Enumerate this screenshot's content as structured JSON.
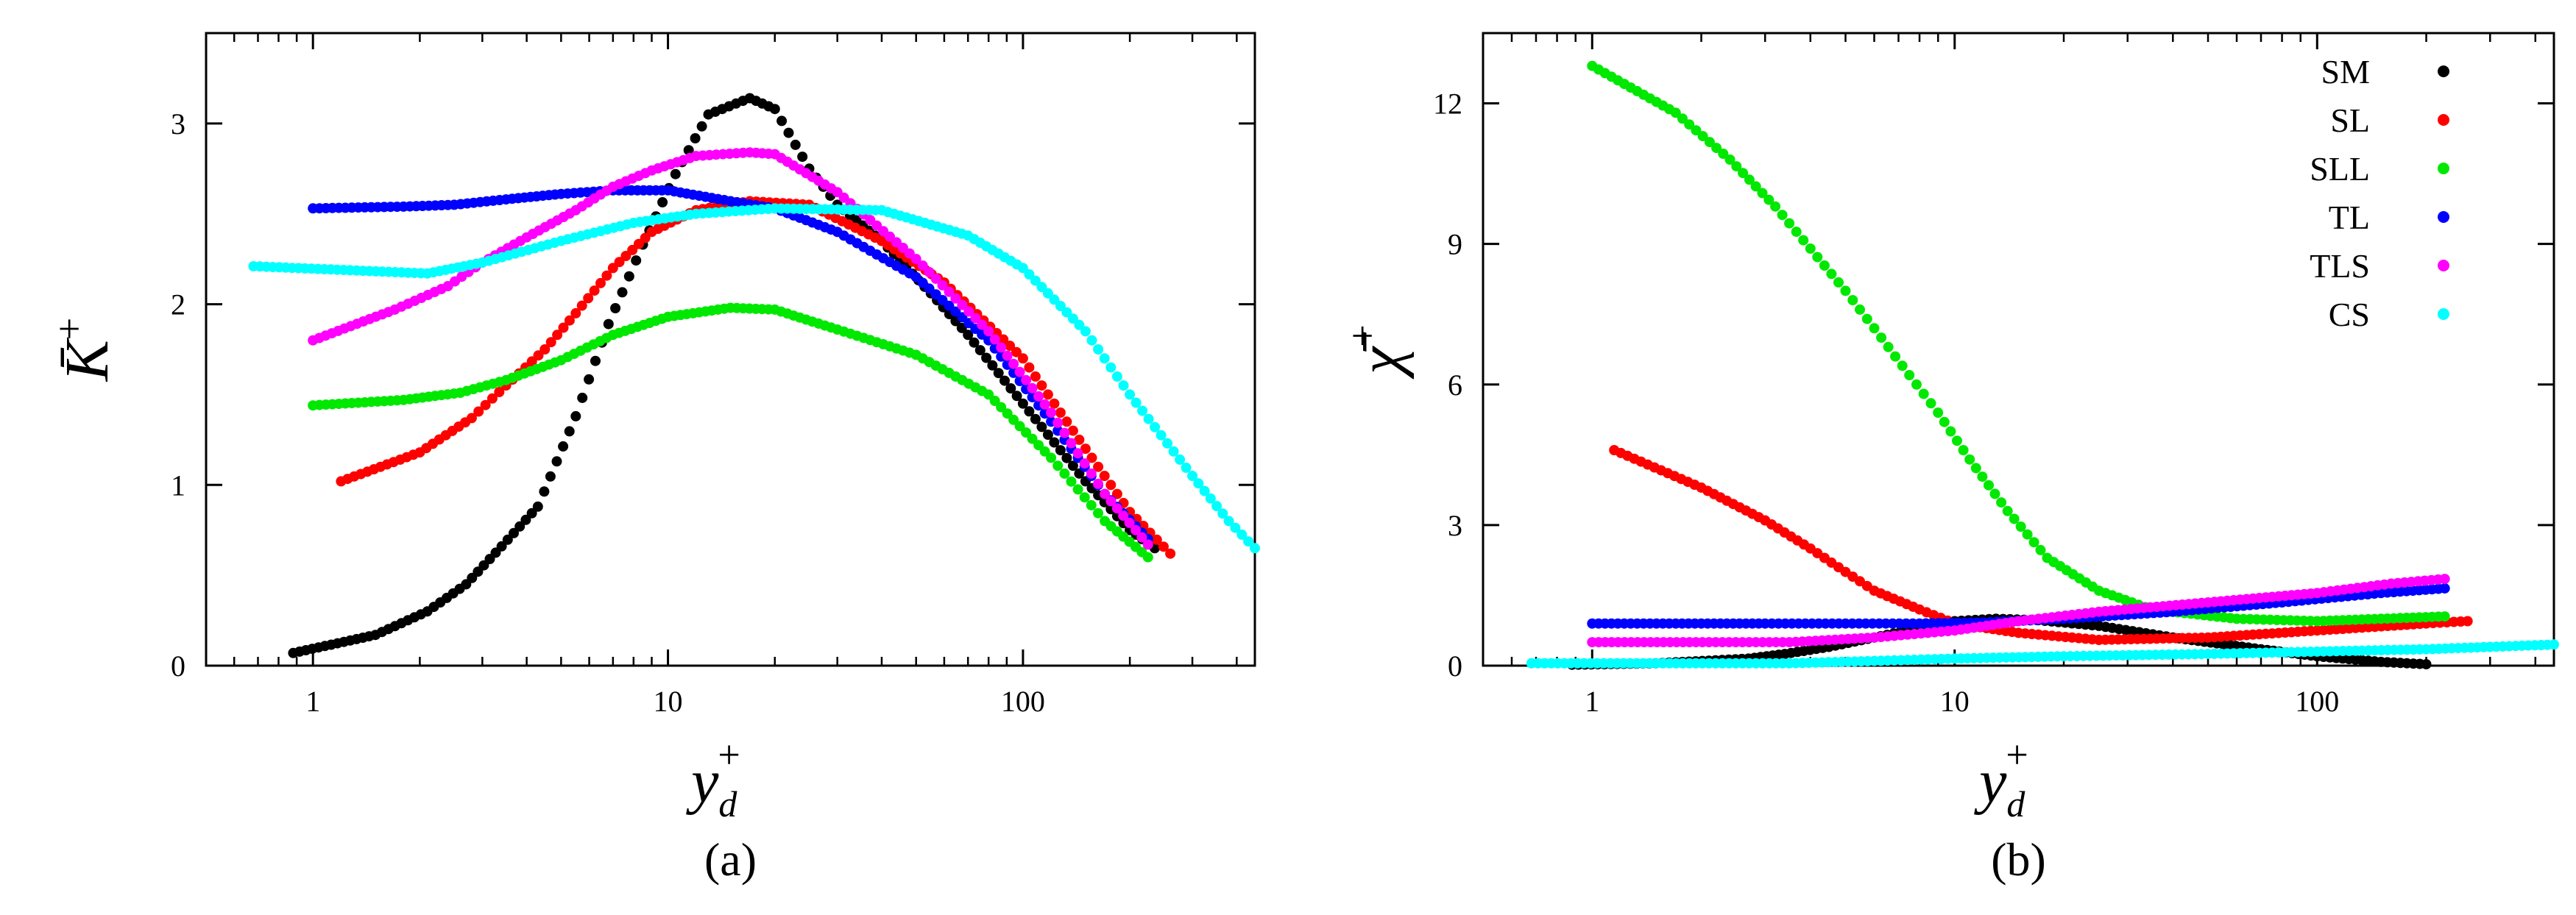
{
  "chart_data": [
    {
      "type": "scatter",
      "panel_label": "(a)",
      "x_scale": "log",
      "xlim": [
        0.5,
        450
      ],
      "ylim": [
        0,
        3.5
      ],
      "xticks": [
        1,
        10,
        100
      ],
      "xtick_labels": [
        "1",
        "10",
        "100"
      ],
      "yticks": [
        0,
        1,
        2,
        3
      ],
      "ytick_labels": [
        "0",
        "1",
        "2",
        "3"
      ],
      "ylabel": "K̄",
      "ylabel_sup": "+",
      "xlabel": "y",
      "xlabel_sub": "d",
      "xlabel_sup": "+",
      "legend": false,
      "series": [
        {
          "name": "SM",
          "color": "#000000",
          "anchors": [
            [
              0.88,
              0.07
            ],
            [
              1.5,
              0.17
            ],
            [
              2.1,
              0.3
            ],
            [
              2.7,
              0.45
            ],
            [
              3.4,
              0.66
            ],
            [
              4.3,
              0.88
            ],
            [
              5.5,
              1.38
            ],
            [
              6.8,
              1.89
            ],
            [
              8.5,
              2.33
            ],
            [
              10.5,
              2.72
            ],
            [
              13,
              3.05
            ],
            [
              17,
              3.14
            ],
            [
              20,
              3.08
            ],
            [
              25,
              2.75
            ],
            [
              30,
              2.55
            ],
            [
              40,
              2.35
            ],
            [
              55,
              2.06
            ],
            [
              70,
              1.83
            ],
            [
              100,
              1.45
            ],
            [
              150,
              1.02
            ],
            [
              200,
              0.75
            ],
            [
              235,
              0.65
            ]
          ]
        },
        {
          "name": "SL",
          "color": "#ff0000",
          "anchors": [
            [
              1.2,
              1.02
            ],
            [
              2.0,
              1.18
            ],
            [
              2.8,
              1.37
            ],
            [
              3.5,
              1.55
            ],
            [
              4.5,
              1.75
            ],
            [
              5.5,
              1.95
            ],
            [
              7,
              2.2
            ],
            [
              9,
              2.4
            ],
            [
              12,
              2.52
            ],
            [
              17,
              2.57
            ],
            [
              25,
              2.55
            ],
            [
              40,
              2.35
            ],
            [
              60,
              2.12
            ],
            [
              100,
              1.7
            ],
            [
              150,
              1.2
            ],
            [
              200,
              0.85
            ],
            [
              260,
              0.62
            ]
          ]
        },
        {
          "name": "SLL",
          "color": "#00e800",
          "anchors": [
            [
              1.0,
              1.44
            ],
            [
              1.8,
              1.47
            ],
            [
              2.6,
              1.51
            ],
            [
              3.5,
              1.58
            ],
            [
              5,
              1.69
            ],
            [
              7,
              1.83
            ],
            [
              10,
              1.93
            ],
            [
              15,
              1.98
            ],
            [
              20,
              1.97
            ],
            [
              30,
              1.86
            ],
            [
              50,
              1.72
            ],
            [
              80,
              1.5
            ],
            [
              120,
              1.15
            ],
            [
              170,
              0.8
            ],
            [
              225,
              0.6
            ]
          ]
        },
        {
          "name": "TL",
          "color": "#0000ff",
          "anchors": [
            [
              1.0,
              2.53
            ],
            [
              1.8,
              2.54
            ],
            [
              2.5,
              2.55
            ],
            [
              3.5,
              2.58
            ],
            [
              5,
              2.61
            ],
            [
              7,
              2.63
            ],
            [
              10,
              2.63
            ],
            [
              15,
              2.57
            ],
            [
              20,
              2.53
            ],
            [
              30,
              2.4
            ],
            [
              50,
              2.15
            ],
            [
              80,
              1.8
            ],
            [
              120,
              1.35
            ],
            [
              170,
              0.95
            ],
            [
              225,
              0.7
            ]
          ]
        },
        {
          "name": "TLS",
          "color": "#ff00ff",
          "anchors": [
            [
              1.0,
              1.8
            ],
            [
              1.7,
              1.97
            ],
            [
              2.4,
              2.1
            ],
            [
              3.0,
              2.23
            ],
            [
              4,
              2.37
            ],
            [
              5.5,
              2.52
            ],
            [
              7,
              2.65
            ],
            [
              9,
              2.74
            ],
            [
              12,
              2.82
            ],
            [
              17,
              2.84
            ],
            [
              20,
              2.83
            ],
            [
              30,
              2.62
            ],
            [
              50,
              2.25
            ],
            [
              80,
              1.85
            ],
            [
              120,
              1.4
            ],
            [
              170,
              0.95
            ],
            [
              225,
              0.67
            ]
          ]
        },
        {
          "name": "CS",
          "color": "#00ffff",
          "anchors": [
            [
              0.68,
              2.21
            ],
            [
              2.1,
              2.17
            ],
            [
              3,
              2.23
            ],
            [
              5,
              2.35
            ],
            [
              8,
              2.45
            ],
            [
              12,
              2.5
            ],
            [
              20,
              2.53
            ],
            [
              40,
              2.52
            ],
            [
              70,
              2.38
            ],
            [
              100,
              2.2
            ],
            [
              150,
              1.85
            ],
            [
              200,
              1.5
            ],
            [
              300,
              1.05
            ],
            [
              380,
              0.8
            ],
            [
              450,
              0.65
            ]
          ]
        }
      ]
    },
    {
      "type": "scatter",
      "panel_label": "(b)",
      "x_scale": "log",
      "xlim": [
        0.5,
        450
      ],
      "ylim": [
        0,
        13.5
      ],
      "xticks": [
        1,
        10,
        100
      ],
      "xtick_labels": [
        "1",
        "10",
        "100"
      ],
      "yticks": [
        0,
        3,
        6,
        9,
        12
      ],
      "ytick_labels": [
        "0",
        "3",
        "6",
        "9",
        "12"
      ],
      "ylabel": "χ̄",
      "ylabel_sup": "+",
      "xlabel": "y",
      "xlabel_sub": "d",
      "xlabel_sup": "+",
      "legend": true,
      "legend_position": "top-right",
      "series": [
        {
          "name": "SM",
          "color": "#000000",
          "anchors": [
            [
              0.88,
              0.02
            ],
            [
              1.5,
              0.05
            ],
            [
              2.7,
              0.15
            ],
            [
              3.4,
              0.25
            ],
            [
              4.5,
              0.4
            ],
            [
              6,
              0.6
            ],
            [
              8,
              0.8
            ],
            [
              10,
              0.95
            ],
            [
              13,
              1.0
            ],
            [
              17,
              0.97
            ],
            [
              25,
              0.85
            ],
            [
              40,
              0.6
            ],
            [
              70,
              0.35
            ],
            [
              100,
              0.2
            ],
            [
              150,
              0.08
            ],
            [
              200,
              0.03
            ]
          ]
        },
        {
          "name": "SL",
          "color": "#ff0000",
          "anchors": [
            [
              1.15,
              4.6
            ],
            [
              2.0,
              3.8
            ],
            [
              3.0,
              3.1
            ],
            [
              4.0,
              2.5
            ],
            [
              5,
              2.0
            ],
            [
              6,
              1.6
            ],
            [
              8,
              1.2
            ],
            [
              10,
              0.9
            ],
            [
              15,
              0.7
            ],
            [
              25,
              0.55
            ],
            [
              50,
              0.6
            ],
            [
              100,
              0.75
            ],
            [
              200,
              0.9
            ],
            [
              260,
              0.95
            ]
          ]
        },
        {
          "name": "SLL",
          "color": "#00e800",
          "anchors": [
            [
              1.0,
              12.8
            ],
            [
              1.7,
              11.8
            ],
            [
              2.4,
              10.8
            ],
            [
              3.2,
              9.8
            ],
            [
              4.0,
              8.9
            ],
            [
              5,
              8.0
            ],
            [
              6,
              7.2
            ],
            [
              7.5,
              6.2
            ],
            [
              9,
              5.4
            ],
            [
              11,
              4.4
            ],
            [
              14,
              3.3
            ],
            [
              18,
              2.3
            ],
            [
              25,
              1.6
            ],
            [
              35,
              1.2
            ],
            [
              60,
              1.0
            ],
            [
              100,
              0.95
            ],
            [
              225,
              1.05
            ]
          ]
        },
        {
          "name": "TL",
          "color": "#0000ff",
          "anchors": [
            [
              1.0,
              0.9
            ],
            [
              1.7,
              0.9
            ],
            [
              3,
              0.9
            ],
            [
              5,
              0.9
            ],
            [
              8,
              0.9
            ],
            [
              12,
              0.92
            ],
            [
              20,
              1.0
            ],
            [
              40,
              1.15
            ],
            [
              80,
              1.35
            ],
            [
              150,
              1.55
            ],
            [
              225,
              1.65
            ]
          ]
        },
        {
          "name": "TLS",
          "color": "#ff00ff",
          "anchors": [
            [
              1.0,
              0.5
            ],
            [
              2.1,
              0.5
            ],
            [
              3.5,
              0.5
            ],
            [
              6,
              0.6
            ],
            [
              10,
              0.75
            ],
            [
              15,
              0.95
            ],
            [
              25,
              1.15
            ],
            [
              50,
              1.35
            ],
            [
              100,
              1.55
            ],
            [
              160,
              1.75
            ],
            [
              225,
              1.85
            ]
          ]
        },
        {
          "name": "CS",
          "color": "#00ffff",
          "anchors": [
            [
              0.68,
              0.05
            ],
            [
              2.1,
              0.05
            ],
            [
              3.5,
              0.05
            ],
            [
              6,
              0.1
            ],
            [
              10,
              0.15
            ],
            [
              20,
              0.2
            ],
            [
              50,
              0.25
            ],
            [
              100,
              0.3
            ],
            [
              200,
              0.35
            ],
            [
              300,
              0.4
            ],
            [
              450,
              0.45
            ]
          ]
        }
      ]
    }
  ]
}
